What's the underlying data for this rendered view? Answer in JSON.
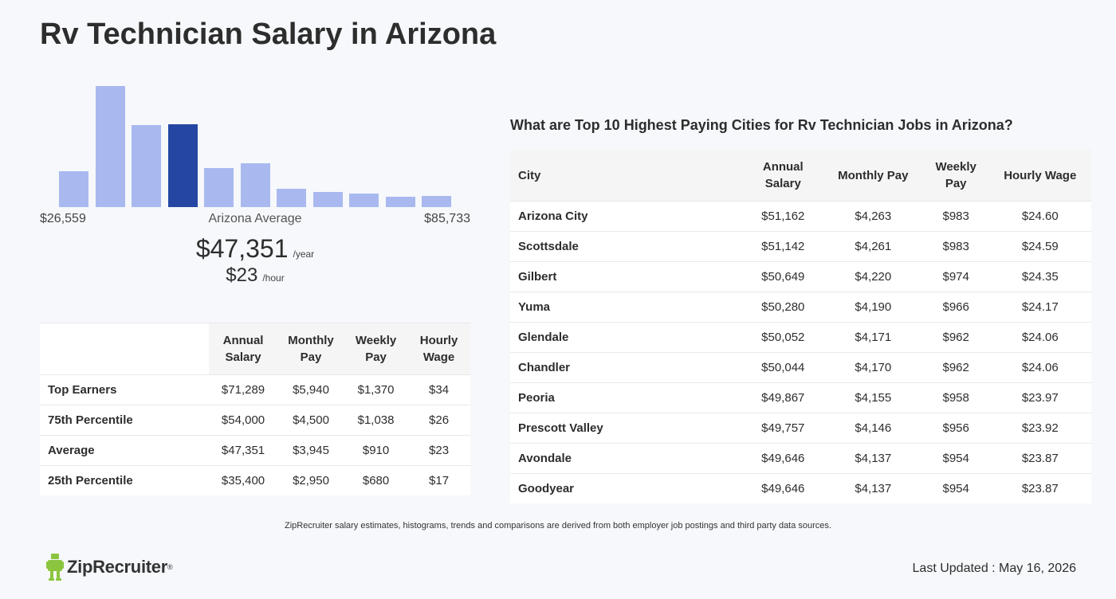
{
  "page": {
    "title": "Rv Technician Salary in Arizona"
  },
  "chart_data": {
    "type": "bar",
    "title": "",
    "categories": [
      "1",
      "2",
      "3",
      "4",
      "5",
      "6",
      "7",
      "8",
      "9",
      "10",
      "11"
    ],
    "values": [
      45,
      152,
      103,
      104,
      49,
      55,
      23,
      19,
      17,
      13,
      14
    ],
    "highlight_index": 3,
    "ylim": [
      0,
      152
    ],
    "grid": false,
    "colors": {
      "bar": "#a9b9f0",
      "highlight": "#2547a3"
    },
    "range_min_label": "$26,559",
    "range_max_label": "$85,733",
    "center_label": "Arizona Average"
  },
  "average": {
    "yearly": "$47,351",
    "yearly_unit": "/year",
    "hourly": "$23",
    "hourly_unit": "/hour"
  },
  "percentile_table": {
    "headers": [
      "Annual Salary",
      "Monthly Pay",
      "Weekly Pay",
      "Hourly Wage"
    ],
    "rows": [
      {
        "label": "Top Earners",
        "values": [
          "$71,289",
          "$5,940",
          "$1,370",
          "$34"
        ]
      },
      {
        "label": "75th Percentile",
        "values": [
          "$54,000",
          "$4,500",
          "$1,038",
          "$26"
        ]
      },
      {
        "label": "Average",
        "values": [
          "$47,351",
          "$3,945",
          "$910",
          "$23"
        ]
      },
      {
        "label": "25th Percentile",
        "values": [
          "$35,400",
          "$2,950",
          "$680",
          "$17"
        ]
      }
    ]
  },
  "cities": {
    "heading": "What are Top 10 Highest Paying Cities for Rv Technician Jobs in Arizona?",
    "headers": [
      "City",
      "Annual Salary",
      "Monthly Pay",
      "Weekly Pay",
      "Hourly Wage"
    ],
    "rows": [
      {
        "city": "Arizona City",
        "values": [
          "$51,162",
          "$4,263",
          "$983",
          "$24.60"
        ]
      },
      {
        "city": "Scottsdale",
        "values": [
          "$51,142",
          "$4,261",
          "$983",
          "$24.59"
        ]
      },
      {
        "city": "Gilbert",
        "values": [
          "$50,649",
          "$4,220",
          "$974",
          "$24.35"
        ]
      },
      {
        "city": "Yuma",
        "values": [
          "$50,280",
          "$4,190",
          "$966",
          "$24.17"
        ]
      },
      {
        "city": "Glendale",
        "values": [
          "$50,052",
          "$4,171",
          "$962",
          "$24.06"
        ]
      },
      {
        "city": "Chandler",
        "values": [
          "$50,044",
          "$4,170",
          "$962",
          "$24.06"
        ]
      },
      {
        "city": "Peoria",
        "values": [
          "$49,867",
          "$4,155",
          "$958",
          "$23.97"
        ]
      },
      {
        "city": "Prescott Valley",
        "values": [
          "$49,757",
          "$4,146",
          "$956",
          "$23.92"
        ]
      },
      {
        "city": "Avondale",
        "values": [
          "$49,646",
          "$4,137",
          "$954",
          "$23.87"
        ]
      },
      {
        "city": "Goodyear",
        "values": [
          "$49,646",
          "$4,137",
          "$954",
          "$23.87"
        ]
      }
    ]
  },
  "footer": {
    "disclaimer": "ZipRecruiter salary estimates, histograms, trends and comparisons are derived from both employer job postings and third party data sources.",
    "logo_text": "ZipRecruiter",
    "logo_reg": "®",
    "logo_icon": "ziprecruiter-mascot-icon",
    "last_updated": "Last Updated : May 16, 2026"
  }
}
